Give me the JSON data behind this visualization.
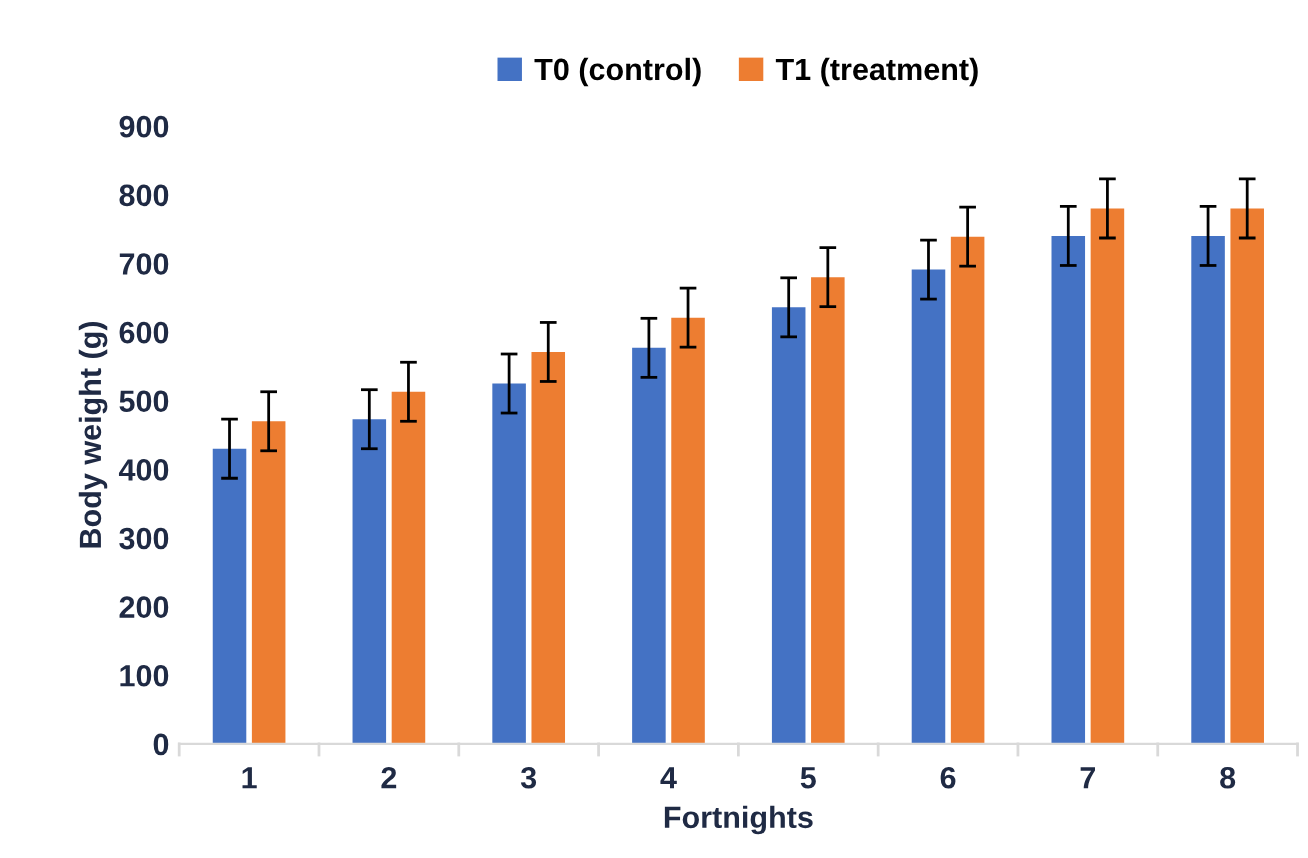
{
  "chart_data": {
    "type": "bar",
    "xlabel": "Fortnights",
    "ylabel": "Body weight (g)",
    "categories": [
      "1",
      "2",
      "3",
      "4",
      "5",
      "6",
      "7",
      "8"
    ],
    "series": [
      {
        "name": "T0 (control)",
        "color": "#4472c4",
        "values": [
          430,
          473,
          525,
          577,
          636,
          691,
          740,
          740
        ],
        "errors": [
          43,
          43,
          43,
          43,
          43,
          43,
          43,
          43
        ]
      },
      {
        "name": "T1 (treatment)",
        "color": "#ed7d31",
        "values": [
          470,
          513,
          571,
          621,
          680,
          739,
          780,
          780
        ],
        "errors": [
          43,
          43,
          43,
          43,
          43,
          43,
          43,
          43
        ]
      }
    ],
    "ylim": [
      0,
      900
    ],
    "yticks": [
      0,
      100,
      200,
      300,
      400,
      500,
      600,
      700,
      800,
      900
    ],
    "grid": false,
    "legend": "top"
  }
}
